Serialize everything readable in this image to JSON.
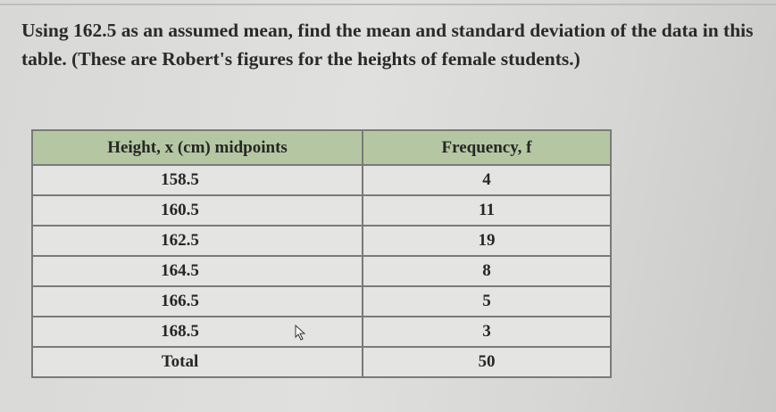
{
  "question": "Using 162.5 as an assumed mean, find the mean and standard deviation of the data in this table. (These are Robert's figures for the heights of female students.)",
  "table": {
    "headers": [
      "Height, x (cm) midpoints",
      "Frequency, f"
    ],
    "rows": [
      [
        "158.5",
        "4"
      ],
      [
        "160.5",
        "11"
      ],
      [
        "162.5",
        "19"
      ],
      [
        "164.5",
        "8"
      ],
      [
        "166.5",
        "5"
      ],
      [
        "168.5",
        "3"
      ],
      [
        "Total",
        "50"
      ]
    ]
  },
  "colors": {
    "header_bg": "#b5c7a2",
    "cell_bg": "#e4e4e2"
  }
}
